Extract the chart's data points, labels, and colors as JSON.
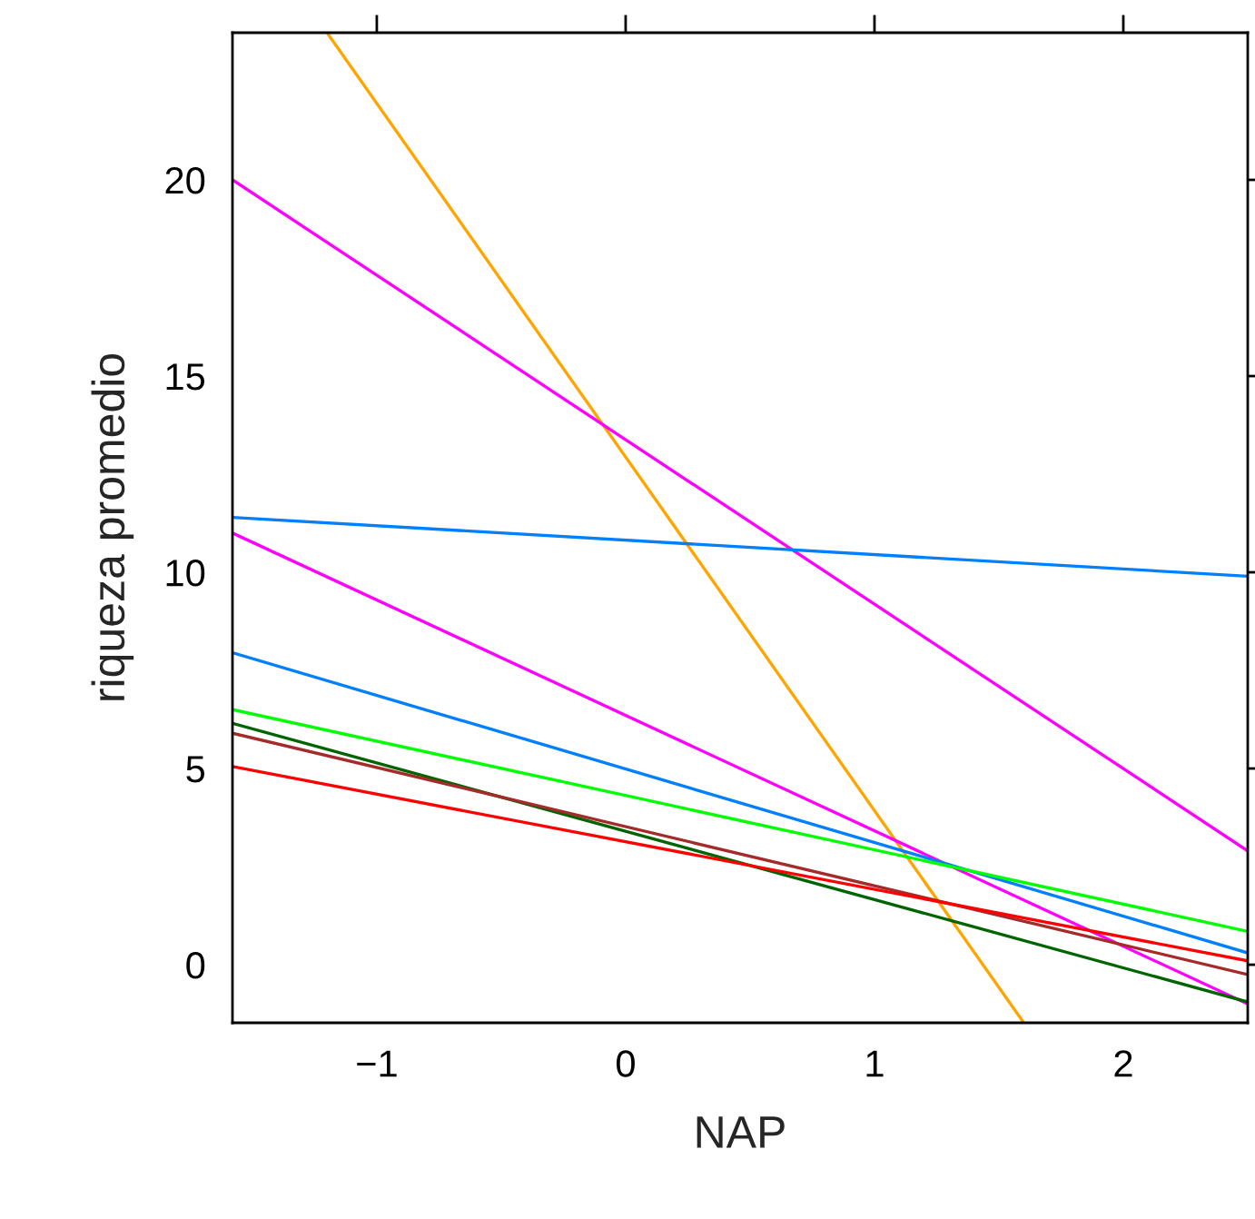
{
  "chart_data": {
    "type": "line",
    "xlabel": "NAP",
    "ylabel": "riqueza promedio",
    "xlim": [
      -1.58,
      2.5
    ],
    "ylim": [
      -1.48,
      23.75
    ],
    "xticks": [
      {
        "value": -1,
        "label": "−1"
      },
      0,
      1,
      2
    ],
    "yticks": [
      0,
      5,
      10,
      15,
      20
    ],
    "grid": false,
    "marker": "none",
    "line_style": "solid",
    "series": [
      {
        "color": "#ffa500",
        "x": [
          -1.2,
          1.6
        ],
        "values": [
          23.75,
          -1.48
        ]
      },
      {
        "color": "#ff00ff",
        "x": [
          -1.58,
          2.5
        ],
        "values": [
          20.0,
          2.9
        ]
      },
      {
        "color": "#ff00ff",
        "x": [
          -1.58,
          2.5
        ],
        "values": [
          11.0,
          -1.0
        ]
      },
      {
        "color": "#0080ff",
        "x": [
          -1.58,
          2.5
        ],
        "values": [
          11.4,
          9.9
        ]
      },
      {
        "color": "#0080ff",
        "x": [
          -1.58,
          2.5
        ],
        "values": [
          7.95,
          0.3
        ]
      },
      {
        "color": "#00ff00",
        "x": [
          -1.58,
          2.5
        ],
        "values": [
          6.5,
          0.85
        ]
      },
      {
        "color": "#006400",
        "x": [
          -1.58,
          2.5
        ],
        "values": [
          6.15,
          -0.95
        ]
      },
      {
        "color": "#a52a2a",
        "x": [
          -1.58,
          2.5
        ],
        "values": [
          5.9,
          -0.25
        ]
      },
      {
        "color": "#ff0000",
        "x": [
          -1.58,
          2.5
        ],
        "values": [
          5.05,
          0.1
        ]
      }
    ]
  }
}
